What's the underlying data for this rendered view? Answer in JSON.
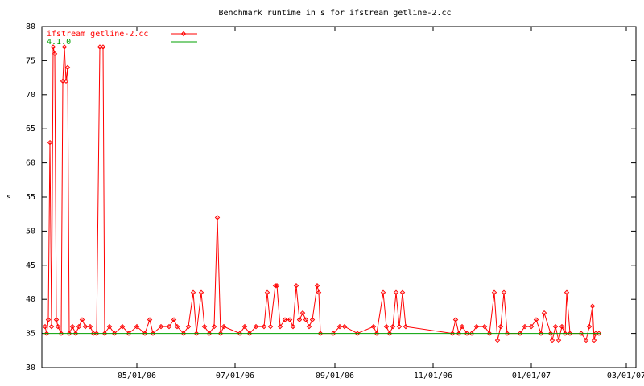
{
  "chart_data": {
    "type": "line",
    "title": "Benchmark runtime in s for ifstream getline-2.cc",
    "y_label": "s",
    "xlim": [
      "2006-03-03",
      "2007-03-07"
    ],
    "xticks": [
      {
        "value": "2006-05-01",
        "label": "05/01/06"
      },
      {
        "value": "2006-07-01",
        "label": "07/01/06"
      },
      {
        "value": "2006-09-01",
        "label": "09/01/06"
      },
      {
        "value": "2006-11-01",
        "label": "11/01/06"
      },
      {
        "value": "2007-01-01",
        "label": "01/01/07"
      },
      {
        "value": "2007-03-01",
        "label": "03/01/07"
      }
    ],
    "ylim": [
      30,
      80
    ],
    "yticks": [
      30,
      35,
      40,
      45,
      50,
      55,
      60,
      65,
      70,
      75,
      80
    ],
    "grid": false,
    "legend": "top-left",
    "series": [
      {
        "name": "ifstream getline-2.cc",
        "color": "#ff0000",
        "markers": true,
        "x": [
          "2006-03-05",
          "2006-03-06",
          "2006-03-07",
          "2006-03-08",
          "2006-03-09",
          "2006-03-10",
          "2006-03-11",
          "2006-03-12",
          "2006-03-13",
          "2006-03-15",
          "2006-03-16",
          "2006-03-17",
          "2006-03-18",
          "2006-03-19",
          "2006-03-20",
          "2006-03-22",
          "2006-03-24",
          "2006-03-26",
          "2006-03-28",
          "2006-03-30",
          "2006-04-02",
          "2006-04-04",
          "2006-04-06",
          "2006-04-08",
          "2006-04-10",
          "2006-04-11",
          "2006-04-14",
          "2006-04-17",
          "2006-04-22",
          "2006-04-26",
          "2006-05-01",
          "2006-05-06",
          "2006-05-09",
          "2006-05-11",
          "2006-05-16",
          "2006-05-21",
          "2006-05-24",
          "2006-05-26",
          "2006-05-30",
          "2006-06-02",
          "2006-06-05",
          "2006-06-07",
          "2006-06-10",
          "2006-06-12",
          "2006-06-15",
          "2006-06-18",
          "2006-06-20",
          "2006-06-22",
          "2006-06-24",
          "2006-07-04",
          "2006-07-07",
          "2006-07-10",
          "2006-07-14",
          "2006-07-19",
          "2006-07-21",
          "2006-07-23",
          "2006-07-26",
          "2006-07-27",
          "2006-07-29",
          "2006-08-01",
          "2006-08-04",
          "2006-08-06",
          "2006-08-08",
          "2006-08-10",
          "2006-08-12",
          "2006-08-14",
          "2006-08-16",
          "2006-08-18",
          "2006-08-21",
          "2006-08-22",
          "2006-08-23",
          "2006-08-31",
          "2006-09-04",
          "2006-09-07",
          "2006-09-15",
          "2006-09-25",
          "2006-09-27",
          "2006-10-01",
          "2006-10-03",
          "2006-10-05",
          "2006-10-07",
          "2006-10-09",
          "2006-10-11",
          "2006-10-13",
          "2006-10-15",
          "2006-11-13",
          "2006-11-15",
          "2006-11-17",
          "2006-11-19",
          "2006-11-22",
          "2006-11-25",
          "2006-11-28",
          "2006-12-03",
          "2006-12-06",
          "2006-12-09",
          "2006-12-11",
          "2006-12-13",
          "2006-12-15",
          "2006-12-17",
          "2006-12-25",
          "2006-12-28",
          "2007-01-01",
          "2007-01-04",
          "2007-01-07",
          "2007-01-09",
          "2007-01-13",
          "2007-01-14",
          "2007-01-16",
          "2007-01-18",
          "2007-01-20",
          "2007-01-22",
          "2007-01-23",
          "2007-01-25",
          "2007-02-01",
          "2007-02-04",
          "2007-02-06",
          "2007-02-08",
          "2007-02-09",
          "2007-02-10",
          "2007-02-12"
        ],
        "values": [
          36,
          35,
          37,
          63,
          36,
          77,
          76,
          37,
          36,
          35,
          72,
          77,
          72,
          74,
          35,
          36,
          35,
          36,
          37,
          36,
          36,
          35,
          35,
          77,
          77,
          35,
          36,
          35,
          36,
          35,
          36,
          35,
          37,
          35,
          36,
          36,
          37,
          36,
          35,
          36,
          41,
          35,
          41,
          36,
          35,
          36,
          52,
          35,
          36,
          35,
          36,
          35,
          36,
          36,
          41,
          36,
          42,
          42,
          36,
          37,
          37,
          36,
          42,
          37,
          38,
          37,
          36,
          37,
          42,
          41,
          35,
          35,
          36,
          36,
          35,
          36,
          35,
          41,
          36,
          35,
          36,
          41,
          36,
          41,
          36,
          35,
          37,
          35,
          36,
          35,
          35,
          36,
          36,
          35,
          41,
          34,
          36,
          41,
          35,
          35,
          36,
          36,
          37,
          35,
          38,
          35,
          34,
          36,
          34,
          36,
          35,
          41,
          35,
          35,
          34,
          36,
          39,
          34,
          35,
          35
        ]
      },
      {
        "name": "4.1.0",
        "color": "#00a000",
        "markers": false,
        "x": [
          "2006-03-04",
          "2007-02-13"
        ],
        "values": [
          35,
          35
        ]
      }
    ]
  }
}
